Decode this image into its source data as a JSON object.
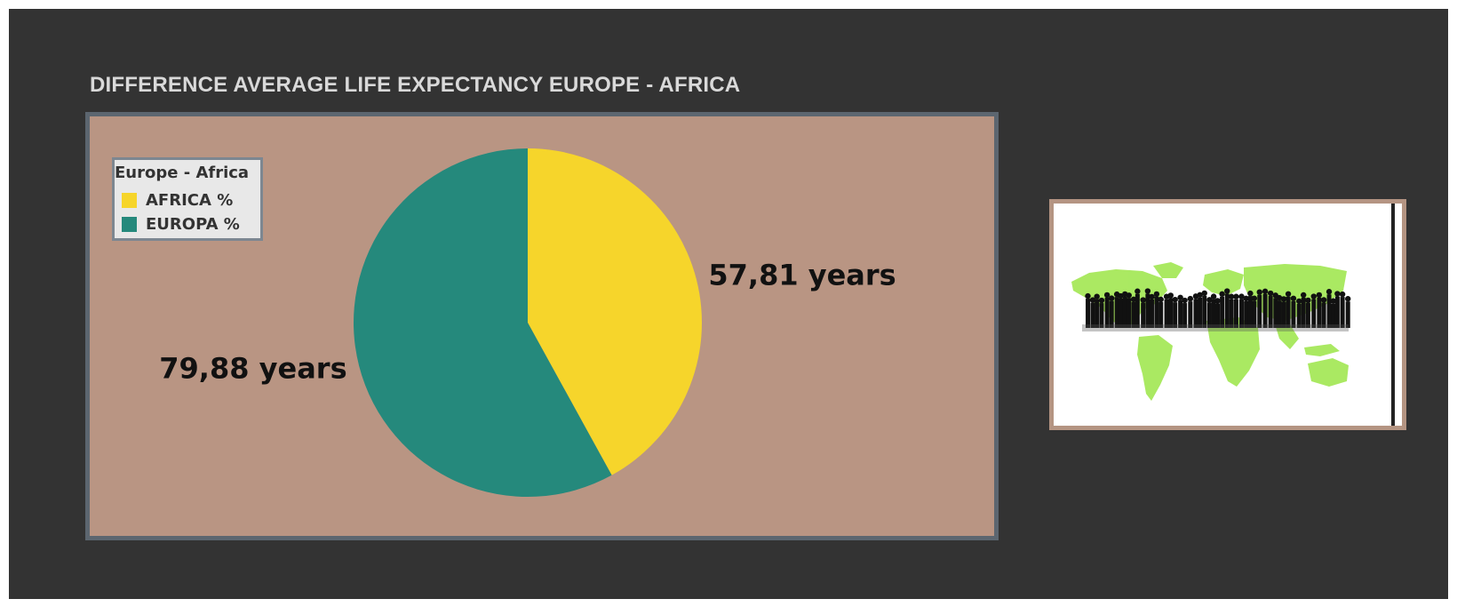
{
  "dashboard": {
    "title": "DIFFERENCE AVERAGE LIFE EXPECTANCY EUROPE - AFRICA"
  },
  "colors": {
    "background": "#333333",
    "panel": "#b99583",
    "panel_border": "#5c6670",
    "africa": "#f6d52b",
    "europa": "#25897c"
  },
  "chart_data": {
    "type": "pie",
    "title": "DIFFERENCE AVERAGE LIFE EXPECTANCY EUROPE - AFRICA",
    "legend_title": "Europe - Africa",
    "legend_position": "top-left",
    "categories": [
      "AFRICA %",
      "EUROPA %"
    ],
    "values": [
      57.81,
      79.88
    ],
    "data_labels": [
      "57,81 years",
      "79,88 years"
    ],
    "colors": [
      "#f6d52b",
      "#25897c"
    ],
    "start_angle": "12 o'clock",
    "direction": "clockwise"
  },
  "image": {
    "icon": "world-map-crowd-illustration"
  }
}
